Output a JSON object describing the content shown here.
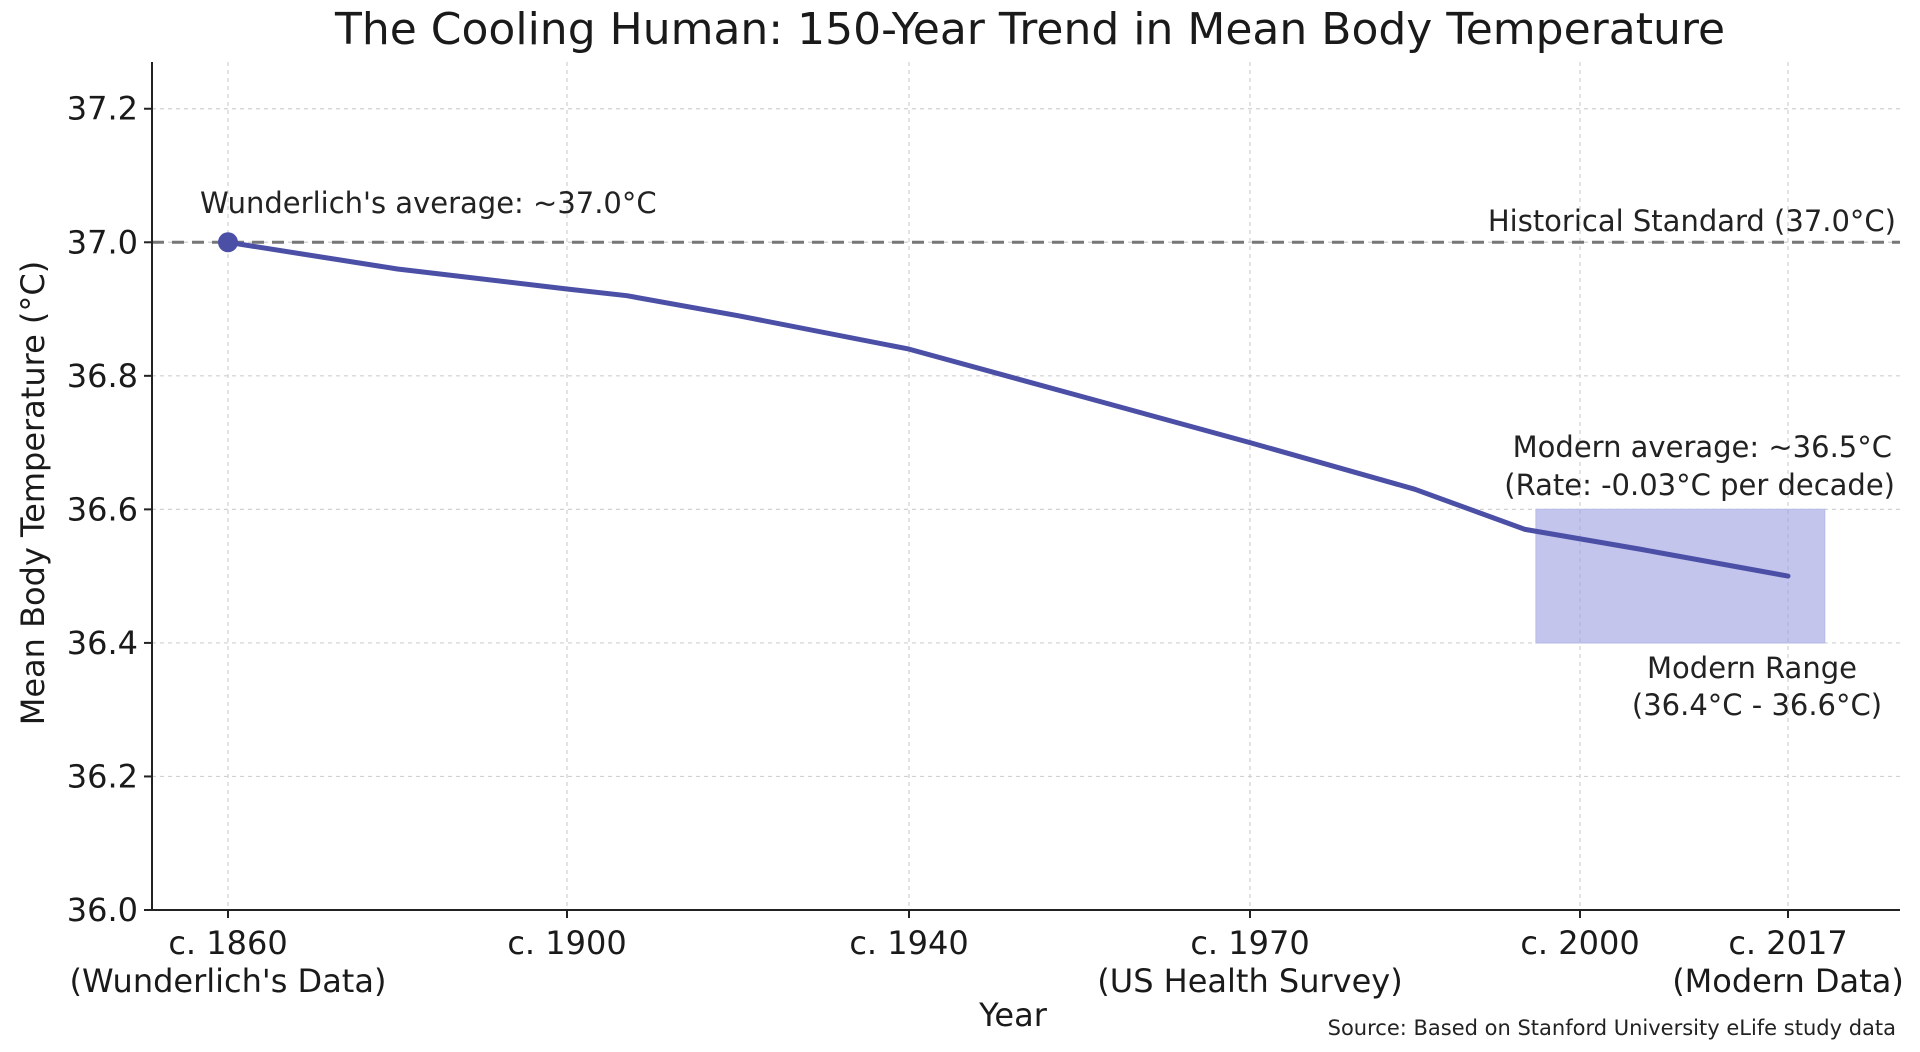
{
  "chart_data": {
    "type": "line",
    "title": "The Cooling Human: 150-Year Trend in Mean Body Temperature",
    "xlabel": "Year",
    "ylabel": "Mean Body Temperature (°C)",
    "x_ticks": [
      {
        "year": 1860,
        "label": [
          "c. 1860",
          "(Wunderlich's Data)"
        ]
      },
      {
        "year": 1900,
        "label": [
          "c. 1900"
        ]
      },
      {
        "year": 1940,
        "label": [
          "c. 1940"
        ]
      },
      {
        "year": 1970,
        "label": [
          "c. 1970",
          "(US Health Survey)"
        ]
      },
      {
        "year": 2000,
        "label": [
          "c. 2000"
        ]
      },
      {
        "year": 2017,
        "label": [
          "c. 2017",
          "(Modern Data)"
        ]
      }
    ],
    "y_ticks": [
      "36.0",
      "36.2",
      "36.4",
      "36.6",
      "36.8",
      "37.0",
      "37.2"
    ],
    "ylim": [
      36.0,
      37.27
    ],
    "grid": true,
    "series": [
      {
        "x": [
          1860,
          1880,
          1900,
          1907,
          1920,
          1940,
          1955,
          1970,
          1985,
          1995,
          2005,
          2017
        ],
        "y": [
          37.0,
          36.96,
          36.93,
          36.92,
          36.89,
          36.84,
          36.77,
          36.7,
          36.63,
          36.57,
          36.54,
          36.5
        ],
        "color": "#4b4fa6"
      }
    ],
    "highlight_point": {
      "x": 1860,
      "y": 37.0
    },
    "reference_line": {
      "y": 37.0,
      "label": "Historical Standard (37.0°C)",
      "color": "#777777"
    },
    "range_band": {
      "x": [
        1996,
        2020
      ],
      "y": [
        36.4,
        36.6
      ],
      "color": "#9b9fe0"
    },
    "annotations": {
      "start": "Wunderlich's average: ~37.0°C",
      "modern_line1": "Modern average: ~36.5°C",
      "modern_line2": "(Rate: -0.03°C per decade)",
      "range_line1": "Modern Range",
      "range_line2": "(36.4°C - 36.6°C)"
    },
    "source": "Source: Based on Stanford University eLife study data"
  }
}
